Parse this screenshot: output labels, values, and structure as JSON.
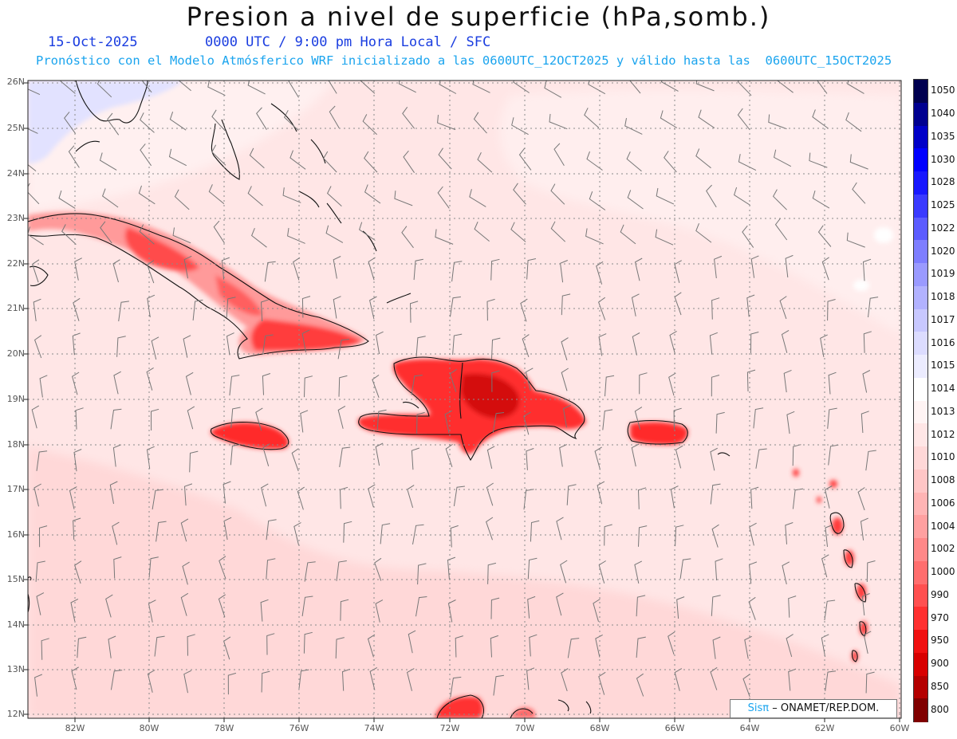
{
  "title": "Presion a nivel de superficie (hPa,somb.)",
  "date": "15-Oct-2025",
  "time_info": "0000 UTC / 9:00 pm Hora Local / SFC",
  "forecast_info": "Pronóstico con el Modelo Atmósferico WRF inicializado a las 0600UTC_12OCT2025 y válido hasta las  0600UTC_15OCT2025",
  "credit": {
    "brand": "Sisπ",
    "org": "– ONAMET/REP.DOM."
  },
  "lat_labels": [
    "26N",
    "25N",
    "24N",
    "23N",
    "22N",
    "21N",
    "20N",
    "19N",
    "18N",
    "17N",
    "16N",
    "15N",
    "14N",
    "13N",
    "12N"
  ],
  "lon_labels": [
    "82W",
    "80W",
    "78W",
    "76W",
    "74W",
    "72W",
    "70W",
    "68W",
    "66W",
    "64W",
    "62W",
    "60W"
  ],
  "legend": {
    "levels": [
      "1050",
      "1040",
      "1035",
      "1030",
      "1028",
      "1025",
      "1022",
      "1020",
      "1019",
      "1018",
      "1017",
      "1016",
      "1015",
      "1014",
      "1013",
      "1012",
      "1010",
      "1008",
      "1006",
      "1004",
      "1002",
      "1000",
      "990",
      "970",
      "950",
      "900",
      "850",
      "800"
    ],
    "colors": [
      "#000050",
      "#000090",
      "#0000c8",
      "#0000ff",
      "#1818ff",
      "#3a3aff",
      "#5c5cff",
      "#7e7eff",
      "#9a9aff",
      "#b2b2ff",
      "#c8c8ff",
      "#dcdcff",
      "#ececff",
      "#ffffff",
      "#fff4f4",
      "#ffe6e6",
      "#ffd8d8",
      "#ffc6c6",
      "#ffb4b4",
      "#ffa0a0",
      "#ff8888",
      "#ff6e6e",
      "#ff5050",
      "#ff3030",
      "#f01010",
      "#d80000",
      "#b40000",
      "#800000"
    ]
  }
}
